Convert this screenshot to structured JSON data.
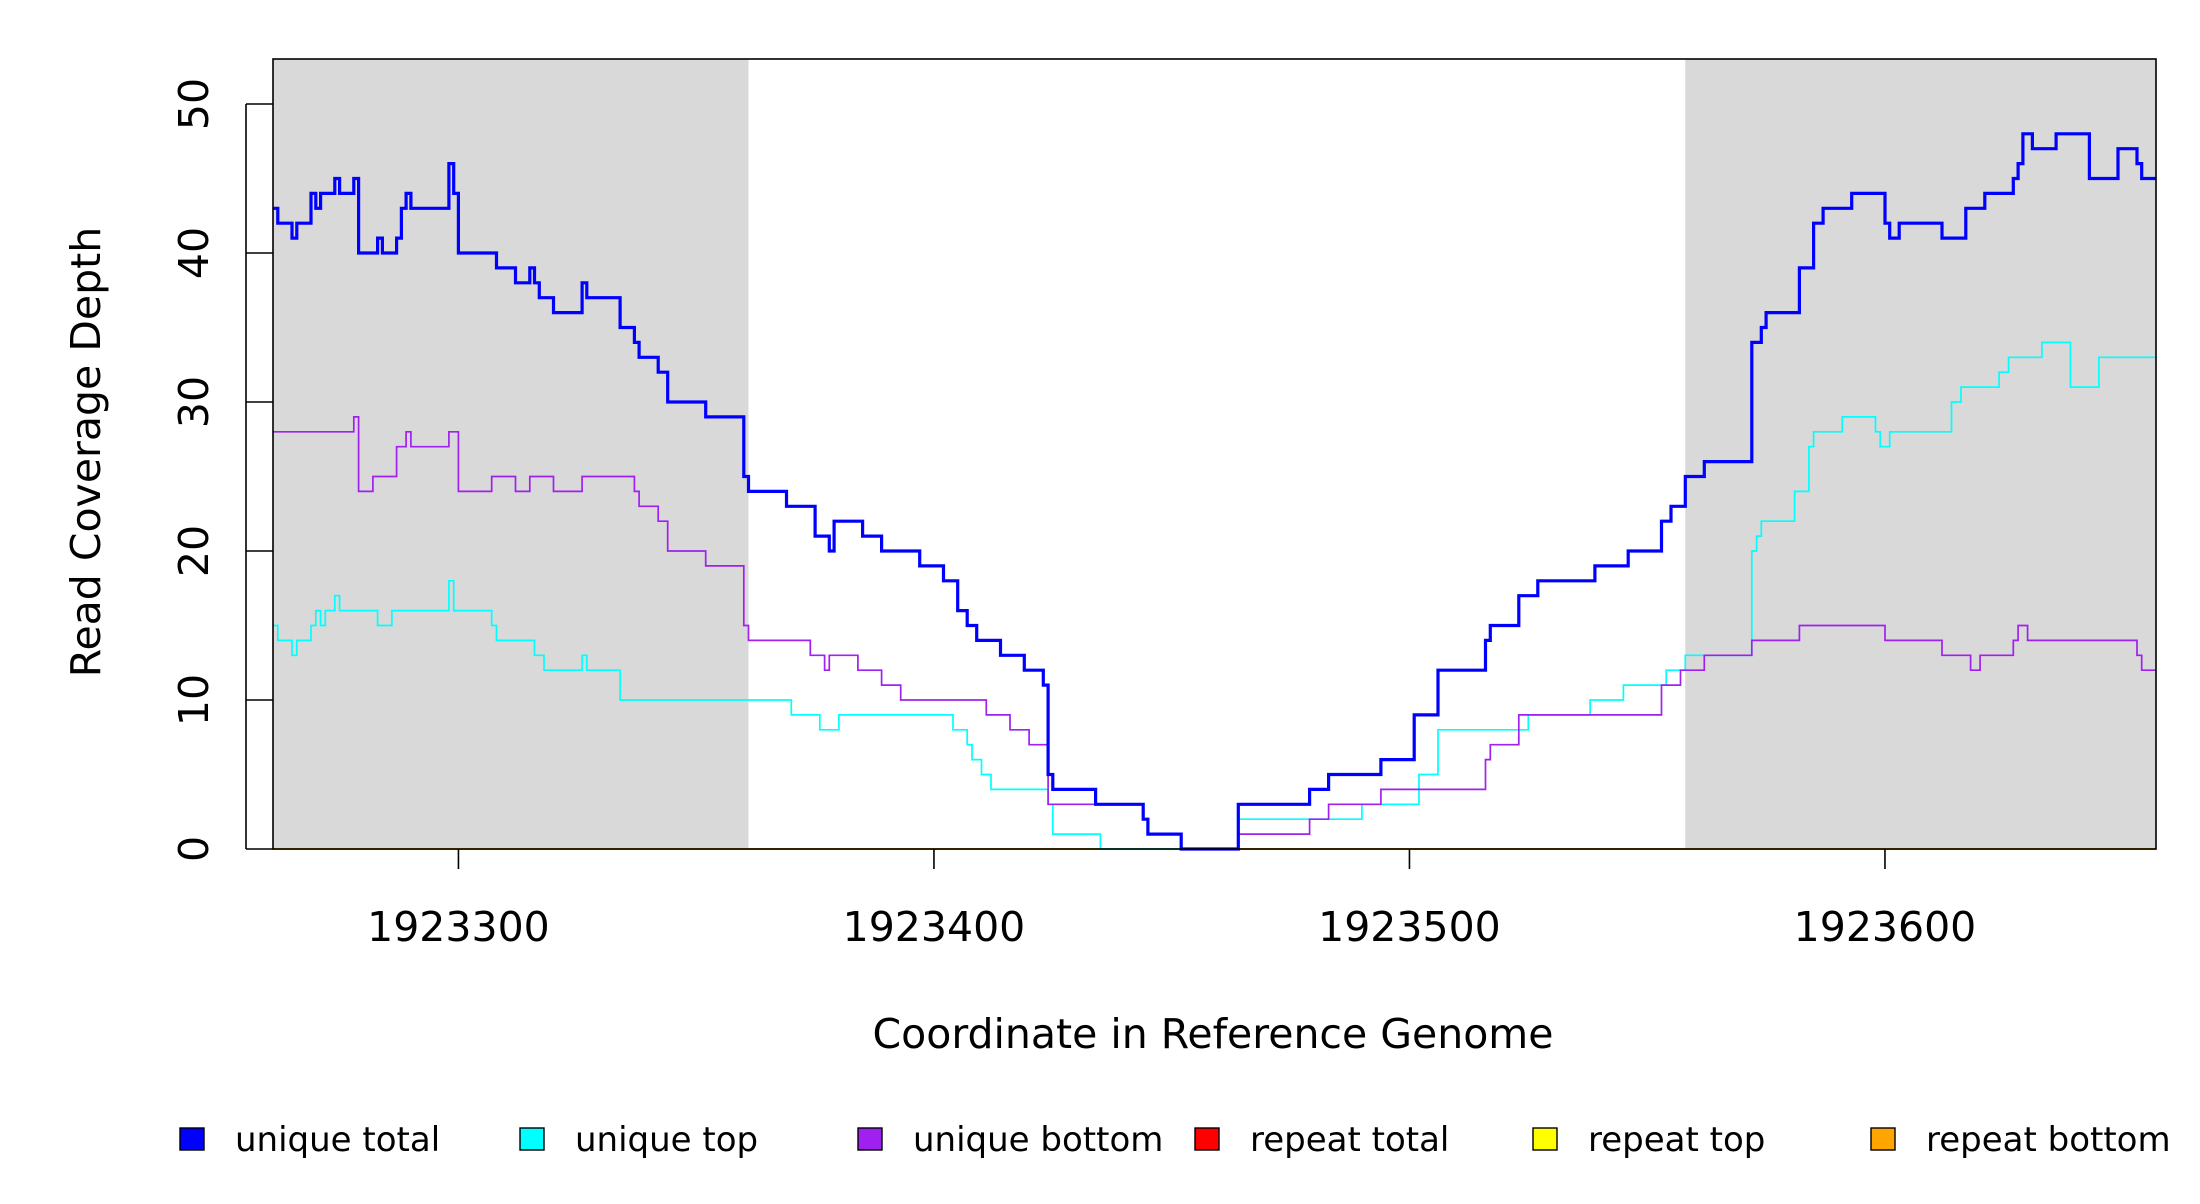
{
  "chart_data": {
    "type": "line",
    "title": "",
    "xlabel": "Coordinate in Reference Genome",
    "ylabel": "Read Coverage Depth",
    "xlim": [
      1923261,
      1923657
    ],
    "ylim": [
      0,
      50
    ],
    "x_ticks": [
      1923300,
      1923400,
      1923500,
      1923600
    ],
    "x_tick_labels": [
      "1923300",
      "1923400",
      "1923500",
      "1923600"
    ],
    "y_ticks": [
      0,
      10,
      20,
      30,
      40,
      50
    ],
    "y_tick_labels": [
      "0",
      "10",
      "20",
      "30",
      "40",
      "50"
    ],
    "shaded_regions": [
      {
        "name": "left-flank",
        "x_start": 1923261,
        "x_end": 1923361,
        "color": "#d9d9d9"
      },
      {
        "name": "right-flank",
        "x_start": 1923558,
        "x_end": 1923657,
        "color": "#d9d9d9"
      }
    ],
    "legend_position": "bottom",
    "legend": [
      {
        "label": "unique total",
        "color": "#0000ff"
      },
      {
        "label": "unique top",
        "color": "#00ffff"
      },
      {
        "label": "unique bottom",
        "color": "#a020f0"
      },
      {
        "label": "repeat total",
        "color": "#ff0000"
      },
      {
        "label": "repeat top",
        "color": "#ffff00"
      },
      {
        "label": "repeat bottom",
        "color": "#ffa500"
      }
    ],
    "series": [
      {
        "name": "unique total",
        "color": "#0000ff",
        "line_weight": "thick",
        "points": [
          [
            1923261,
            43
          ],
          [
            1923262,
            42
          ],
          [
            1923265,
            41
          ],
          [
            1923266,
            42
          ],
          [
            1923269,
            44
          ],
          [
            1923270,
            43
          ],
          [
            1923271,
            44
          ],
          [
            1923274,
            45
          ],
          [
            1923275,
            44
          ],
          [
            1923278,
            45
          ],
          [
            1923279,
            40
          ],
          [
            1923283,
            41
          ],
          [
            1923284,
            40
          ],
          [
            1923287,
            41
          ],
          [
            1923288,
            43
          ],
          [
            1923289,
            44
          ],
          [
            1923290,
            43
          ],
          [
            1923298,
            46
          ],
          [
            1923299,
            44
          ],
          [
            1923300,
            40
          ],
          [
            1923308,
            39
          ],
          [
            1923312,
            38
          ],
          [
            1923315,
            39
          ],
          [
            1923316,
            38
          ],
          [
            1923317,
            37
          ],
          [
            1923320,
            36
          ],
          [
            1923326,
            38
          ],
          [
            1923327,
            37
          ],
          [
            1923334,
            35
          ],
          [
            1923337,
            34
          ],
          [
            1923338,
            33
          ],
          [
            1923342,
            32
          ],
          [
            1923344,
            30
          ],
          [
            1923352,
            29
          ],
          [
            1923360,
            25
          ],
          [
            1923361,
            24
          ],
          [
            1923369,
            23
          ],
          [
            1923375,
            21
          ],
          [
            1923378,
            20
          ],
          [
            1923379,
            22
          ],
          [
            1923385,
            21
          ],
          [
            1923389,
            20
          ],
          [
            1923397,
            19
          ],
          [
            1923402,
            18
          ],
          [
            1923405,
            16
          ],
          [
            1923407,
            15
          ],
          [
            1923409,
            14
          ],
          [
            1923414,
            13
          ],
          [
            1923419,
            12
          ],
          [
            1923423,
            11
          ],
          [
            1923424,
            5
          ],
          [
            1923425,
            4
          ],
          [
            1923434,
            3
          ],
          [
            1923444,
            2
          ],
          [
            1923445,
            1
          ],
          [
            1923452,
            0
          ],
          [
            1923464,
            3
          ],
          [
            1923479,
            4
          ],
          [
            1923483,
            5
          ],
          [
            1923494,
            6
          ],
          [
            1923501,
            9
          ],
          [
            1923506,
            12
          ],
          [
            1923516,
            14
          ],
          [
            1923517,
            15
          ],
          [
            1923523,
            17
          ],
          [
            1923527,
            18
          ],
          [
            1923539,
            19
          ],
          [
            1923546,
            20
          ],
          [
            1923553,
            22
          ],
          [
            1923555,
            23
          ],
          [
            1923558,
            25
          ],
          [
            1923562,
            26
          ],
          [
            1923572,
            34
          ],
          [
            1923574,
            35
          ],
          [
            1923575,
            36
          ],
          [
            1923582,
            39
          ],
          [
            1923585,
            42
          ],
          [
            1923587,
            43
          ],
          [
            1923593,
            44
          ],
          [
            1923600,
            42
          ],
          [
            1923601,
            41
          ],
          [
            1923603,
            42
          ],
          [
            1923612,
            41
          ],
          [
            1923617,
            43
          ],
          [
            1923621,
            44
          ],
          [
            1923627,
            45
          ],
          [
            1923628,
            46
          ],
          [
            1923629,
            48
          ],
          [
            1923631,
            47
          ],
          [
            1923636,
            48
          ],
          [
            1923643,
            45
          ],
          [
            1923649,
            47
          ],
          [
            1923653,
            46
          ],
          [
            1923654,
            45
          ],
          [
            1923657,
            45
          ]
        ]
      },
      {
        "name": "unique top",
        "color": "#00ffff",
        "line_weight": "thin",
        "points": [
          [
            1923261,
            15
          ],
          [
            1923262,
            14
          ],
          [
            1923265,
            13
          ],
          [
            1923266,
            14
          ],
          [
            1923269,
            15
          ],
          [
            1923270,
            16
          ],
          [
            1923271,
            15
          ],
          [
            1923272,
            16
          ],
          [
            1923274,
            17
          ],
          [
            1923275,
            16
          ],
          [
            1923283,
            15
          ],
          [
            1923286,
            16
          ],
          [
            1923298,
            18
          ],
          [
            1923299,
            16
          ],
          [
            1923307,
            15
          ],
          [
            1923308,
            14
          ],
          [
            1923316,
            13
          ],
          [
            1923318,
            12
          ],
          [
            1923326,
            13
          ],
          [
            1923327,
            12
          ],
          [
            1923334,
            10
          ],
          [
            1923370,
            9
          ],
          [
            1923376,
            8
          ],
          [
            1923380,
            9
          ],
          [
            1923404,
            8
          ],
          [
            1923407,
            7
          ],
          [
            1923408,
            6
          ],
          [
            1923410,
            5
          ],
          [
            1923412,
            4
          ],
          [
            1923424,
            3
          ],
          [
            1923425,
            1
          ],
          [
            1923435,
            0
          ],
          [
            1923464,
            2
          ],
          [
            1923490,
            3
          ],
          [
            1923502,
            5
          ],
          [
            1923506,
            8
          ],
          [
            1923525,
            9
          ],
          [
            1923538,
            10
          ],
          [
            1923545,
            11
          ],
          [
            1923554,
            12
          ],
          [
            1923558,
            13
          ],
          [
            1923572,
            20
          ],
          [
            1923573,
            21
          ],
          [
            1923574,
            22
          ],
          [
            1923581,
            24
          ],
          [
            1923584,
            27
          ],
          [
            1923585,
            28
          ],
          [
            1923591,
            29
          ],
          [
            1923598,
            28
          ],
          [
            1923599,
            27
          ],
          [
            1923601,
            28
          ],
          [
            1923614,
            30
          ],
          [
            1923616,
            31
          ],
          [
            1923624,
            32
          ],
          [
            1923626,
            33
          ],
          [
            1923633,
            34
          ],
          [
            1923639,
            31
          ],
          [
            1923645,
            33
          ],
          [
            1923657,
            33
          ]
        ]
      },
      {
        "name": "unique bottom",
        "color": "#a020f0",
        "line_weight": "thin",
        "points": [
          [
            1923261,
            28
          ],
          [
            1923278,
            29
          ],
          [
            1923279,
            24
          ],
          [
            1923282,
            25
          ],
          [
            1923287,
            27
          ],
          [
            1923289,
            28
          ],
          [
            1923290,
            27
          ],
          [
            1923298,
            28
          ],
          [
            1923300,
            24
          ],
          [
            1923307,
            25
          ],
          [
            1923312,
            24
          ],
          [
            1923315,
            25
          ],
          [
            1923320,
            24
          ],
          [
            1923326,
            25
          ],
          [
            1923337,
            24
          ],
          [
            1923338,
            23
          ],
          [
            1923342,
            22
          ],
          [
            1923344,
            20
          ],
          [
            1923352,
            19
          ],
          [
            1923360,
            15
          ],
          [
            1923361,
            14
          ],
          [
            1923374,
            13
          ],
          [
            1923377,
            12
          ],
          [
            1923378,
            13
          ],
          [
            1923384,
            12
          ],
          [
            1923389,
            11
          ],
          [
            1923393,
            10
          ],
          [
            1923411,
            9
          ],
          [
            1923416,
            8
          ],
          [
            1923420,
            7
          ],
          [
            1923424,
            3
          ],
          [
            1923444,
            2
          ],
          [
            1923445,
            1
          ],
          [
            1923452,
            0
          ],
          [
            1923464,
            1
          ],
          [
            1923479,
            2
          ],
          [
            1923483,
            3
          ],
          [
            1923494,
            4
          ],
          [
            1923516,
            6
          ],
          [
            1923517,
            7
          ],
          [
            1923523,
            9
          ],
          [
            1923553,
            11
          ],
          [
            1923557,
            12
          ],
          [
            1923562,
            13
          ],
          [
            1923572,
            14
          ],
          [
            1923582,
            15
          ],
          [
            1923600,
            14
          ],
          [
            1923612,
            13
          ],
          [
            1923618,
            12
          ],
          [
            1923620,
            13
          ],
          [
            1923627,
            14
          ],
          [
            1923628,
            15
          ],
          [
            1923630,
            14
          ],
          [
            1923653,
            13
          ],
          [
            1923654,
            12
          ],
          [
            1923657,
            12
          ]
        ]
      },
      {
        "name": "repeat total",
        "color": "#ff0000",
        "line_weight": "thin",
        "points": [
          [
            1923261,
            0
          ],
          [
            1923657,
            0
          ]
        ]
      },
      {
        "name": "repeat top",
        "color": "#ffff00",
        "line_weight": "thin",
        "points": [
          [
            1923261,
            0
          ],
          [
            1923657,
            0
          ]
        ]
      },
      {
        "name": "repeat bottom",
        "color": "#ffa500",
        "line_weight": "thin",
        "points": [
          [
            1923261,
            0
          ],
          [
            1923657,
            0
          ]
        ]
      }
    ]
  }
}
